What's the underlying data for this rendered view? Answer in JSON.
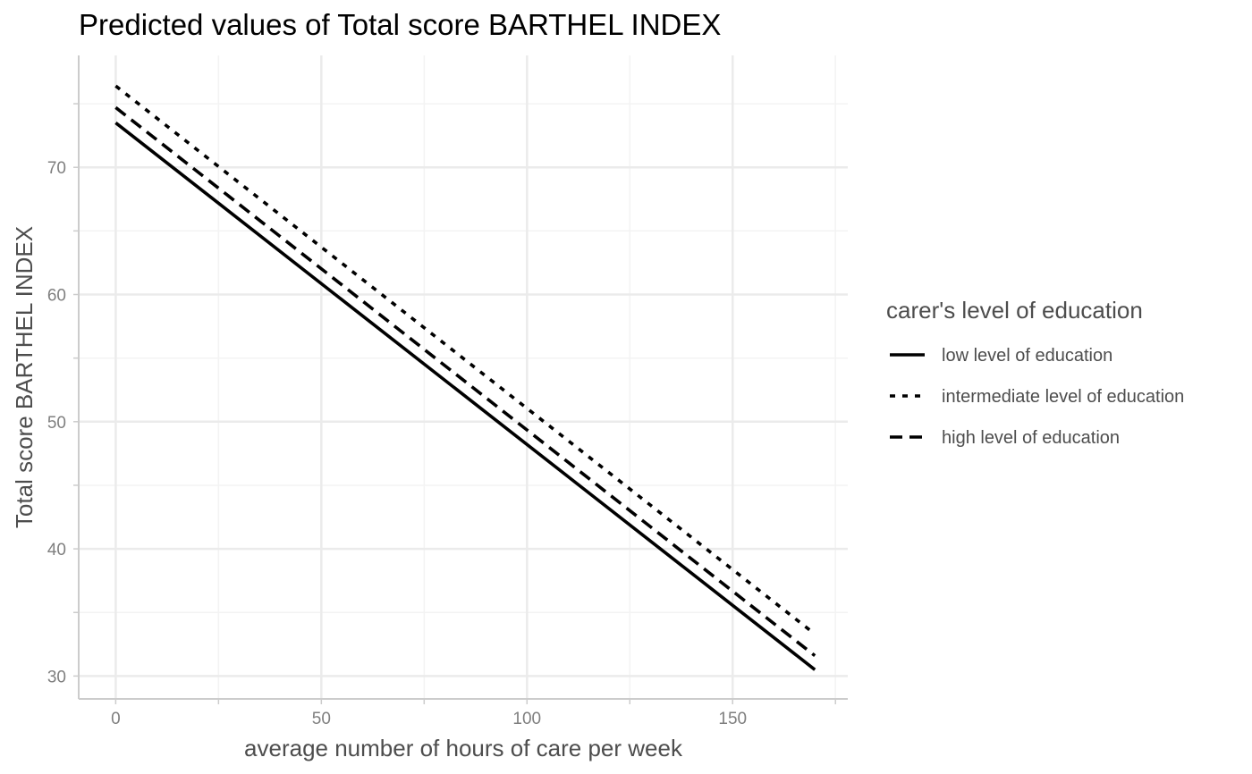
{
  "chart_data": {
    "type": "line",
    "title": "Predicted values of Total score BARTHEL INDEX",
    "xlabel": "average number of hours of care per week",
    "ylabel": "Total score BARTHEL INDEX",
    "xlim": [
      -9,
      178
    ],
    "ylim": [
      28.2,
      78.8
    ],
    "x_ticks": [
      0,
      50,
      100,
      150
    ],
    "x_tick_labels": [
      "0",
      "50",
      "100",
      "150"
    ],
    "x_minor_ticks": [
      25,
      75,
      125,
      175
    ],
    "y_ticks": [
      30,
      40,
      50,
      60,
      70
    ],
    "y_tick_labels": [
      "30",
      "40",
      "50",
      "60",
      "70"
    ],
    "y_minor_ticks": [
      35,
      45,
      55,
      65,
      75
    ],
    "grid": true,
    "legend": {
      "title": "carer's level of education",
      "position": "right"
    },
    "series": [
      {
        "name": "low level of education",
        "linetype": "solid",
        "x": [
          0,
          170
        ],
        "y": [
          73.5,
          30.5
        ]
      },
      {
        "name": "intermediate level of education",
        "linetype": "dotted",
        "x": [
          0,
          170
        ],
        "y": [
          76.4,
          33.3
        ]
      },
      {
        "name": "high level of education",
        "linetype": "dashed",
        "x": [
          0,
          170
        ],
        "y": [
          74.7,
          31.6
        ]
      }
    ],
    "colors": {
      "line": "#000000",
      "grid_major": "#ebebeb",
      "grid_minor": "#f3f3f3",
      "axis": "#cccccc",
      "tick_text": "#7f7f7f",
      "axis_title_text": "#4d4d4d"
    }
  }
}
